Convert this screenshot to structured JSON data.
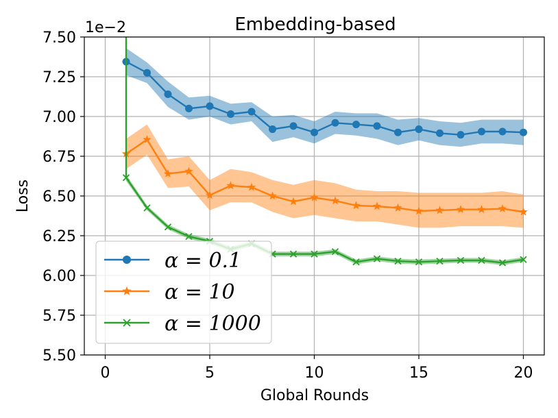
{
  "chart_data": {
    "type": "line",
    "title": "Embedding-based",
    "xlabel": "Global Rounds",
    "ylabel": "Loss",
    "offset_text": "1e−2",
    "xlim": [
      -1,
      21
    ],
    "ylim": [
      5.5,
      7.5
    ],
    "xticks": [
      0,
      5,
      10,
      15,
      20
    ],
    "yticks": [
      5.5,
      5.75,
      6.0,
      6.25,
      6.5,
      6.75,
      7.0,
      7.25,
      7.5
    ],
    "ytick_labels": [
      "5.50",
      "5.75",
      "6.00",
      "6.25",
      "6.50",
      "6.75",
      "7.00",
      "7.25",
      "7.50"
    ],
    "grid": true,
    "legend_position": "lower-left",
    "series": [
      {
        "name": "α = 0.1",
        "color": "#1f77b4",
        "marker": "circle",
        "x": [
          1,
          2,
          3,
          4,
          5,
          6,
          7,
          8,
          9,
          10,
          11,
          12,
          13,
          14,
          15,
          16,
          17,
          18,
          19,
          20
        ],
        "values": [
          7.345,
          7.275,
          7.14,
          7.05,
          7.065,
          7.015,
          7.03,
          6.92,
          6.94,
          6.9,
          6.96,
          6.95,
          6.94,
          6.9,
          6.92,
          6.895,
          6.885,
          6.905,
          6.905,
          6.9
        ],
        "band_upper": [
          7.43,
          7.34,
          7.22,
          7.12,
          7.13,
          7.08,
          7.09,
          7.0,
          7.01,
          6.97,
          7.03,
          7.02,
          7.02,
          6.98,
          6.99,
          6.97,
          6.96,
          6.98,
          6.98,
          6.98
        ],
        "band_lower": [
          7.26,
          7.21,
          7.06,
          6.98,
          7.0,
          6.95,
          6.97,
          6.84,
          6.87,
          6.83,
          6.89,
          6.88,
          6.86,
          6.82,
          6.85,
          6.82,
          6.81,
          6.83,
          6.83,
          6.82
        ]
      },
      {
        "name": "α = 10",
        "color": "#ff7f0e",
        "marker": "star",
        "x": [
          1,
          2,
          3,
          4,
          5,
          6,
          7,
          8,
          9,
          10,
          11,
          12,
          13,
          14,
          15,
          16,
          17,
          18,
          19,
          20
        ],
        "values": [
          6.765,
          6.855,
          6.64,
          6.655,
          6.505,
          6.565,
          6.555,
          6.5,
          6.465,
          6.49,
          6.47,
          6.44,
          6.435,
          6.425,
          6.405,
          6.41,
          6.415,
          6.415,
          6.42,
          6.4
        ],
        "band_upper": [
          6.86,
          6.95,
          6.73,
          6.75,
          6.6,
          6.67,
          6.65,
          6.6,
          6.57,
          6.6,
          6.58,
          6.54,
          6.53,
          6.53,
          6.52,
          6.52,
          6.52,
          6.52,
          6.53,
          6.51
        ],
        "band_lower": [
          6.67,
          6.76,
          6.55,
          6.56,
          6.41,
          6.46,
          6.46,
          6.4,
          6.36,
          6.38,
          6.36,
          6.34,
          6.34,
          6.32,
          6.3,
          6.3,
          6.31,
          6.31,
          6.31,
          6.3
        ]
      },
      {
        "name": "α = 1000",
        "color": "#2ca02c",
        "marker": "x",
        "x": [
          1,
          2,
          3,
          4,
          5,
          6,
          7,
          8,
          9,
          10,
          11,
          12,
          13,
          14,
          15,
          16,
          17,
          18,
          19,
          20
        ],
        "values": [
          6.615,
          6.425,
          6.305,
          6.245,
          6.215,
          6.165,
          6.2,
          6.135,
          6.135,
          6.135,
          6.15,
          6.085,
          6.105,
          6.09,
          6.085,
          6.09,
          6.095,
          6.095,
          6.08,
          6.1
        ],
        "band_upper": [
          6.635,
          6.44,
          6.32,
          6.26,
          6.23,
          6.18,
          6.215,
          6.15,
          6.15,
          6.15,
          6.165,
          6.1,
          6.12,
          6.105,
          6.1,
          6.105,
          6.11,
          6.11,
          6.095,
          6.115
        ],
        "band_lower": [
          6.595,
          6.41,
          6.29,
          6.23,
          6.2,
          6.15,
          6.185,
          6.12,
          6.12,
          6.12,
          6.135,
          6.07,
          6.09,
          6.075,
          6.07,
          6.075,
          6.08,
          6.08,
          6.065,
          6.085
        ],
        "spike_from": 7.5
      }
    ]
  }
}
